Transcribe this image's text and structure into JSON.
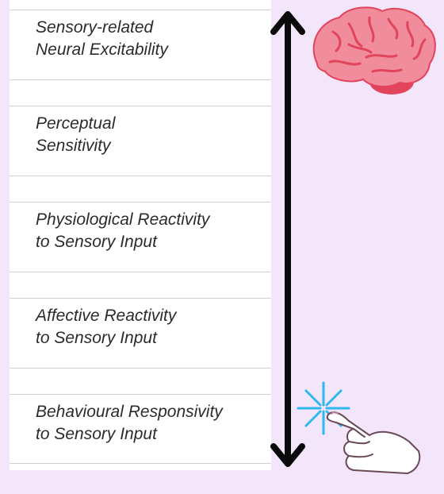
{
  "levels": [
    {
      "line1": "Sensory-related",
      "line2": "Neural Excitability"
    },
    {
      "line1": "Perceptual",
      "line2": "Sensitivity"
    },
    {
      "line1": "Physiological Reactivity",
      "line2": "to Sensory Input"
    },
    {
      "line1": "Affective Reactivity",
      "line2": "to Sensory Input"
    },
    {
      "line1": "Behavioural Responsivity",
      "line2": "to Sensory Input"
    }
  ],
  "icons": {
    "top": "brain-icon",
    "bottom": "touching-hand-icon",
    "axis": "double-headed-arrow-icon"
  },
  "colors": {
    "background": "#f3e6fb",
    "panel": "#ffffff",
    "arrow": "#0a0a0a",
    "brain": "#f08c9c",
    "brain_dark": "#e2445c",
    "spark": "#2fb7f0",
    "text": "#2b2b2b"
  }
}
